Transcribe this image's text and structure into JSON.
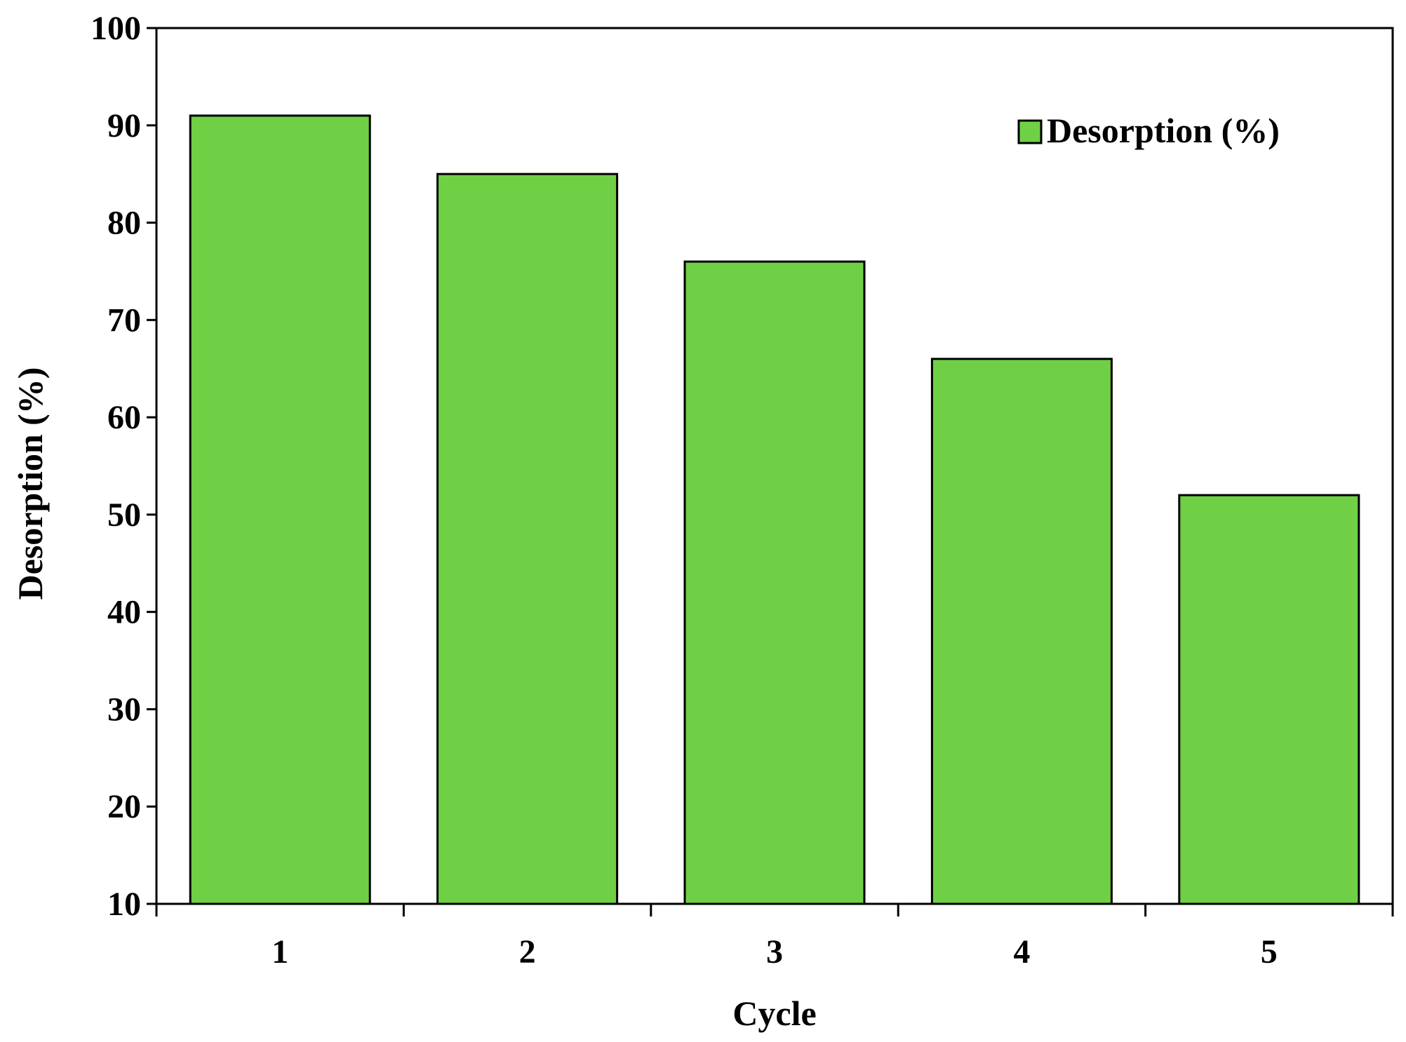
{
  "chart_data": {
    "type": "bar",
    "categories": [
      "1",
      "2",
      "3",
      "4",
      "5"
    ],
    "series": [
      {
        "name": "Desorption (%)",
        "values": [
          91,
          85,
          76,
          66,
          52
        ],
        "color": "#6fd046"
      }
    ],
    "xlabel": "Cycle",
    "ylabel": "Desorption (%)",
    "ylim": [
      10,
      100
    ],
    "yticks": [
      10,
      20,
      30,
      40,
      50,
      60,
      70,
      80,
      90,
      100
    ],
    "grid": false,
    "legend": "top-right",
    "bar_outline_color": "#000000"
  }
}
